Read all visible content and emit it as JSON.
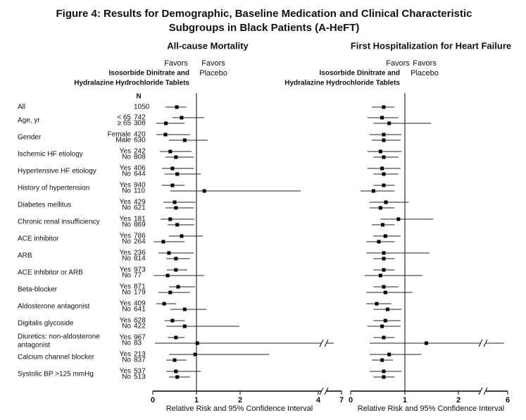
{
  "chart_data": {
    "type": "forest",
    "title_lines": [
      "Figure 4: Results for Demographic, Baseline Medication and Clinical Characteristic",
      "Subgroups in Black Patients (A-HeFT)"
    ],
    "n_header": "N",
    "groups": [
      "All",
      "Age, yr",
      null,
      "Gender",
      null,
      "Ischemic HF etiology",
      null,
      "Hypertensive HF etiology",
      null,
      "History of hypertension",
      null,
      "Diabetes mellitus",
      null,
      "Chronic renal insufficiency",
      null,
      "ACE inhibitor",
      null,
      "ARB",
      null,
      "ACE inhibitor or ARB",
      null,
      "Beta-blocker",
      null,
      "Aldosterone antagonist",
      null,
      "Digitalis glycoside",
      null,
      "Diuretics: non-aldosterone",
      "antagonist",
      "Calcium channel blocker",
      null,
      "Systolic BP >125 mmHg",
      null
    ],
    "subgroups": [
      null,
      "< 65",
      "≥ 65",
      "Female",
      "Male",
      "Yes",
      "No",
      "Yes",
      "No",
      "Yes",
      "No",
      "Yes",
      "No",
      "Yes",
      "No",
      "Yes",
      "No",
      "Yes",
      "No",
      "Yes",
      "No",
      "Yes",
      "No",
      "Yes",
      "No",
      "Yes",
      "No",
      "Yes",
      "No",
      "Yes",
      "No",
      "Yes",
      "No"
    ],
    "n": [
      1050,
      742,
      308,
      420,
      630,
      242,
      808,
      406,
      644,
      940,
      110,
      429,
      621,
      181,
      869,
      786,
      264,
      236,
      814,
      973,
      77,
      871,
      179,
      409,
      641,
      628,
      422,
      967,
      83,
      213,
      837,
      537,
      513
    ],
    "panels": [
      {
        "title": "All-cause Mortality",
        "favors_treatment": [
          "Favors",
          "Isosorbide Dinitrate and",
          "Hydralazine Hydrochloride Tablets"
        ],
        "favors_placebo": [
          "Favors",
          "Placebo"
        ],
        "xlabel": "Relative Risk and 95% Confidence Interval",
        "xlim": [
          0,
          7
        ],
        "xticks": [
          0,
          1,
          2,
          4,
          7
        ],
        "reference_line": 1,
        "estimates": [
          0.55,
          0.66,
          0.3,
          0.29,
          0.73,
          0.4,
          0.53,
          0.45,
          0.56,
          0.45,
          1.18,
          0.5,
          0.53,
          0.4,
          0.56,
          0.66,
          0.24,
          0.37,
          0.53,
          0.53,
          0.34,
          0.58,
          0.4,
          0.26,
          0.73,
          0.45,
          0.73,
          0.53,
          1.02,
          0.97,
          0.5,
          0.53,
          0.56
        ],
        "lower": [
          0.29,
          0.45,
          0.08,
          0.08,
          0.37,
          0.16,
          0.29,
          0.21,
          0.27,
          0.21,
          0.4,
          0.24,
          0.29,
          0.18,
          0.34,
          0.37,
          0.02,
          0.13,
          0.31,
          0.32,
          0.02,
          0.37,
          0.13,
          0.08,
          0.4,
          0.27,
          0.31,
          0.34,
          0.05,
          0.37,
          0.31,
          0.31,
          0.37
        ],
        "upper": [
          0.77,
          1.18,
          0.73,
          0.85,
          1.26,
          0.89,
          0.94,
          0.94,
          1.1,
          0.73,
          3.55,
          0.98,
          0.94,
          0.95,
          0.95,
          1.15,
          0.73,
          0.94,
          0.85,
          0.79,
          1.18,
          0.97,
          0.85,
          0.53,
          1.23,
          0.73,
          1.98,
          0.73,
          6.0,
          2.74,
          0.77,
          1.1,
          0.85
        ]
      },
      {
        "title": "First Hospitalization for Heart Failure",
        "favors_treatment": [
          "Favors",
          "Isosorbide Dinitrate and",
          "Hydralazine Hydrochloride Tablets"
        ],
        "favors_placebo": [
          "Favors",
          "Placebo"
        ],
        "xlabel": "Relative Risk and 95% Confidence Interval",
        "xlim": [
          0,
          6
        ],
        "xticks": [
          0,
          1,
          2,
          6
        ],
        "reference_line": 1,
        "estimates": [
          0.61,
          0.58,
          0.71,
          0.61,
          0.61,
          0.55,
          0.61,
          0.58,
          0.61,
          0.61,
          0.42,
          0.65,
          0.55,
          0.88,
          0.59,
          0.64,
          0.52,
          0.61,
          0.61,
          0.61,
          0.55,
          0.61,
          0.64,
          0.48,
          0.68,
          0.64,
          0.58,
          0.61,
          1.4,
          0.71,
          0.58,
          0.61,
          0.61
        ],
        "lower": [
          0.39,
          0.31,
          0.42,
          0.35,
          0.39,
          0.31,
          0.42,
          0.31,
          0.42,
          0.42,
          0.18,
          0.35,
          0.35,
          0.55,
          0.39,
          0.42,
          0.29,
          0.29,
          0.42,
          0.42,
          0.26,
          0.42,
          0.29,
          0.29,
          0.42,
          0.42,
          0.31,
          0.42,
          0.35,
          0.35,
          0.39,
          0.35,
          0.42
        ],
        "upper": [
          0.81,
          0.88,
          1.49,
          0.94,
          0.92,
          0.94,
          0.88,
          0.92,
          0.88,
          0.81,
          0.81,
          1.07,
          0.81,
          1.53,
          0.81,
          0.92,
          0.81,
          1.46,
          0.81,
          0.81,
          1.33,
          0.88,
          1.14,
          0.75,
          0.94,
          0.92,
          0.92,
          0.81,
          5.7,
          1.31,
          0.78,
          0.94,
          0.81
        ]
      }
    ]
  }
}
